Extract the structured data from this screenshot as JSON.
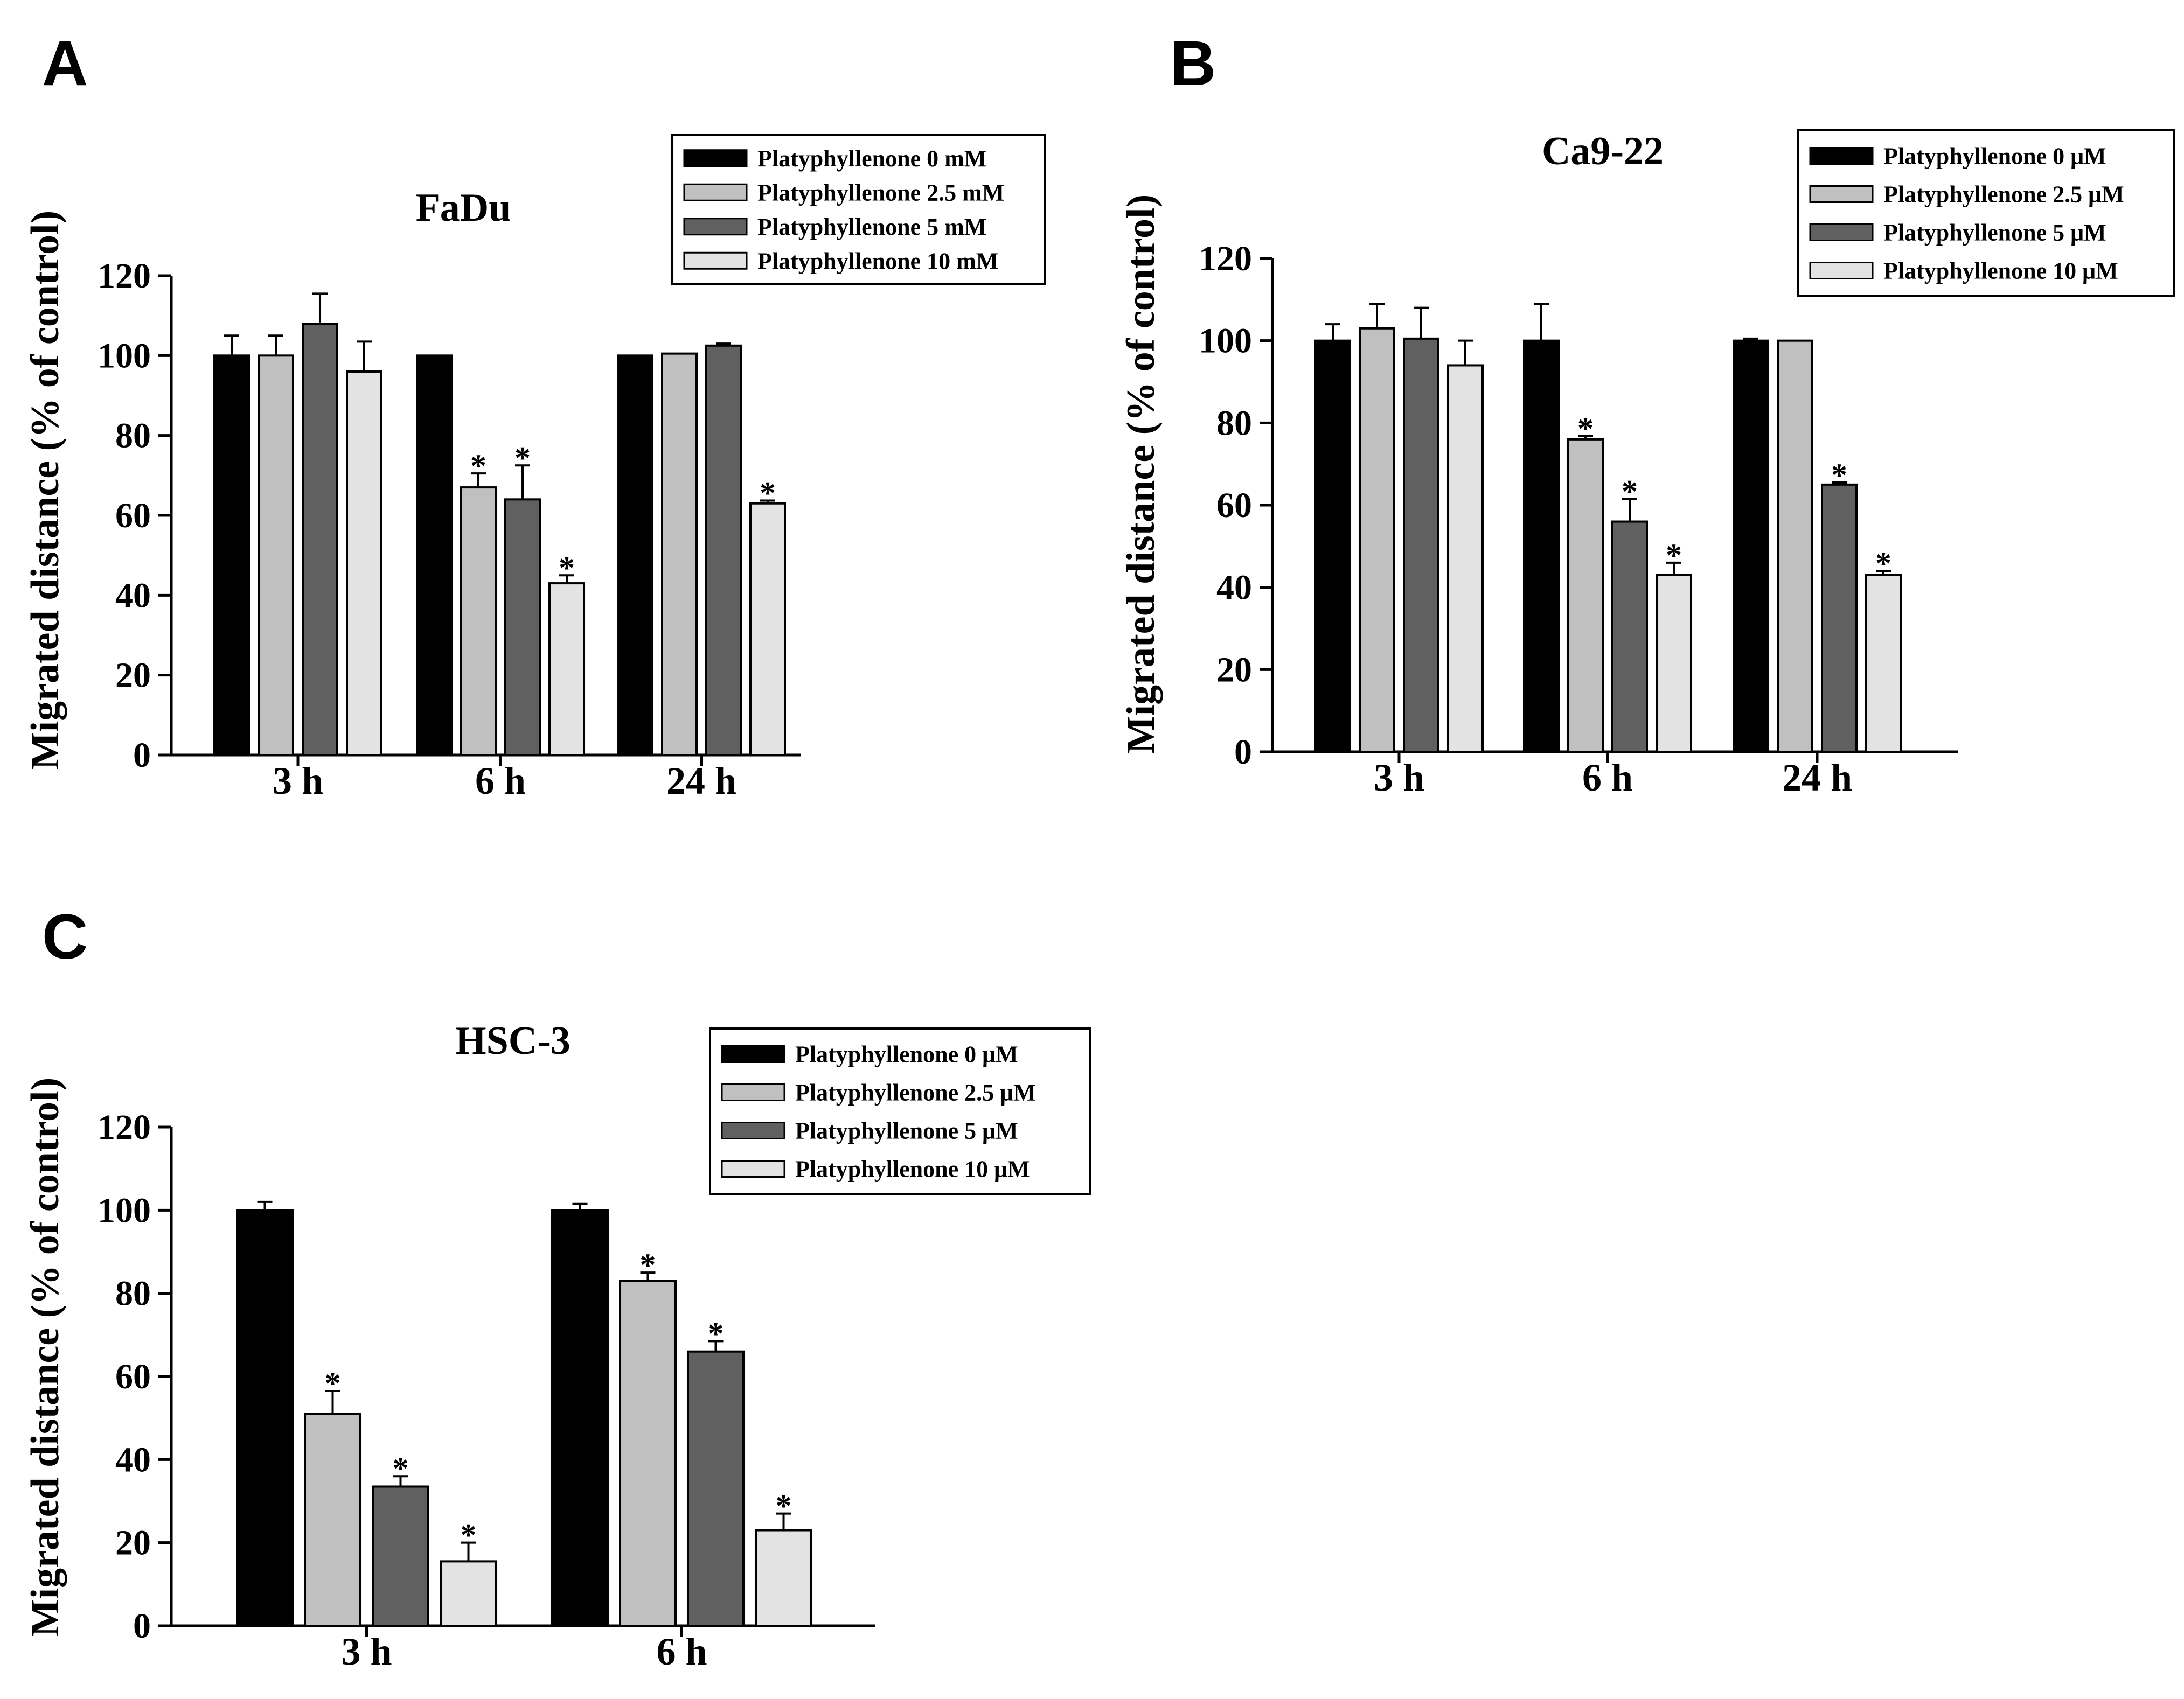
{
  "colors": {
    "black": "#000000",
    "light_gray": "#c0c0c0",
    "dark_gray": "#606060",
    "very_light_gray": "#e3e3e3"
  },
  "chart_data": [
    {
      "panel": "A",
      "type": "bar",
      "title": "FaDu",
      "ylabel": "Migrated distance   (% of control)",
      "xlabel": "",
      "ylim": [
        0,
        120
      ],
      "yticks": [
        "0",
        "20",
        "40",
        "60",
        "80",
        "100",
        "120"
      ],
      "categories": [
        "3 h",
        "6 h",
        "24 h"
      ],
      "legend_position": "top-right",
      "series": [
        {
          "name": "Platyphyllenone 0 mM",
          "color_key": "black",
          "values": [
            100,
            100,
            100
          ],
          "errors": [
            5,
            0,
            0
          ],
          "significant": [
            false,
            false,
            false
          ]
        },
        {
          "name": "Platyphyllenone 2.5 mM",
          "color_key": "light_gray",
          "values": [
            100,
            67,
            100.5
          ],
          "errors": [
            5,
            3.5,
            0
          ],
          "significant": [
            false,
            true,
            false
          ]
        },
        {
          "name": "Platyphyllenone 5 mM",
          "color_key": "dark_gray",
          "values": [
            108,
            64,
            102.5
          ],
          "errors": [
            7.5,
            8.5,
            0.5
          ],
          "significant": [
            false,
            true,
            false
          ]
        },
        {
          "name": "Platyphyllenone 10 mM",
          "color_key": "very_light_gray",
          "values": [
            96,
            43,
            63
          ],
          "errors": [
            7.5,
            2,
            0.7
          ],
          "significant": [
            false,
            true,
            true
          ]
        }
      ],
      "star_label": "*"
    },
    {
      "panel": "B",
      "type": "bar",
      "title": "Ca9-22",
      "ylabel": "Migrated distance   (% of control)",
      "xlabel": "",
      "ylim": [
        0,
        120
      ],
      "yticks": [
        "0",
        "20",
        "40",
        "60",
        "80",
        "100",
        "120"
      ],
      "categories": [
        "3 h",
        "6 h",
        "24 h"
      ],
      "legend_position": "top-right",
      "series": [
        {
          "name": "Platyphyllenone 0 μM",
          "color_key": "black",
          "values": [
            100,
            100,
            100
          ],
          "errors": [
            4,
            9,
            0.5
          ],
          "significant": [
            false,
            false,
            false
          ]
        },
        {
          "name": "Platyphyllenone 2.5 μM",
          "color_key": "light_gray",
          "values": [
            103,
            76,
            100
          ],
          "errors": [
            6,
            0.8,
            0
          ],
          "significant": [
            false,
            true,
            false
          ]
        },
        {
          "name": "Platyphyllenone 5 μM",
          "color_key": "dark_gray",
          "values": [
            100.5,
            56,
            65
          ],
          "errors": [
            7.5,
            5.5,
            0.5
          ],
          "significant": [
            false,
            true,
            true
          ]
        },
        {
          "name": "Platyphyllenone 10 μM",
          "color_key": "very_light_gray",
          "values": [
            94,
            43,
            43
          ],
          "errors": [
            6,
            3,
            1
          ],
          "significant": [
            false,
            true,
            true
          ]
        }
      ],
      "star_label": "*"
    },
    {
      "panel": "C",
      "type": "bar",
      "title": "HSC-3",
      "ylabel": "Migrated distance   (% of control)",
      "xlabel": "",
      "ylim": [
        0,
        120
      ],
      "yticks": [
        "0",
        "20",
        "40",
        "60",
        "80",
        "100",
        "120"
      ],
      "categories": [
        "3 h",
        "6 h"
      ],
      "legend_position": "top-right",
      "series": [
        {
          "name": "Platyphyllenone 0 μM",
          "color_key": "black",
          "values": [
            100,
            100
          ],
          "errors": [
            2,
            1.5
          ],
          "significant": [
            false,
            false
          ]
        },
        {
          "name": "Platyphyllenone 2.5 μM",
          "color_key": "light_gray",
          "values": [
            51,
            83
          ],
          "errors": [
            5.5,
            2
          ],
          "significant": [
            true,
            true
          ]
        },
        {
          "name": "Platyphyllenone 5 μM",
          "color_key": "dark_gray",
          "values": [
            33.5,
            66
          ],
          "errors": [
            2.5,
            2.5
          ],
          "significant": [
            true,
            true
          ]
        },
        {
          "name": "Platyphyllenone 10 μM",
          "color_key": "very_light_gray",
          "values": [
            15.5,
            23
          ],
          "errors": [
            4.5,
            4
          ],
          "significant": [
            true,
            true
          ]
        }
      ],
      "star_label": "*"
    }
  ]
}
